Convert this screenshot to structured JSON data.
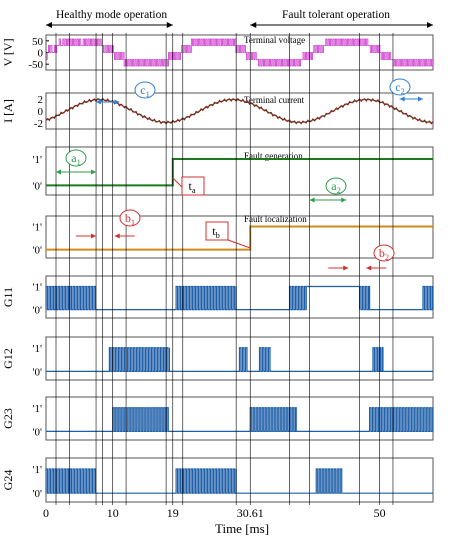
{
  "chart_data": {
    "type": "line",
    "mode_labels": {
      "healthy": "Healthy mode operation",
      "fault_tolerant": "Fault tolerant operation"
    },
    "xlabel": "Time [ms]",
    "x_ticks": [
      "0",
      "10",
      "19",
      "30.61",
      "50"
    ],
    "x_tick_values": [
      0,
      10,
      19,
      30.61,
      50
    ],
    "xlim": [
      0,
      58
    ],
    "event_times": {
      "t_a": 19,
      "t_b": 30.61
    },
    "logic_ticks": [
      "'1'",
      "'0'"
    ],
    "panels": [
      {
        "id": "voltage",
        "ylabel": "V [V]",
        "title": "Terminal voltage",
        "yticks": [
          "50",
          "0",
          "-50"
        ],
        "ylim": [
          -75,
          75
        ],
        "color": "#cc33cc"
      },
      {
        "id": "current",
        "ylabel": "I [A]",
        "title": "Terminal current",
        "yticks": [
          "2",
          "0",
          "-2"
        ],
        "ylim": [
          -3,
          3
        ],
        "color": "#8b1a1a",
        "ref_color": "#2e7d32"
      },
      {
        "id": "fault-generation",
        "title": "Fault generation",
        "color": "#1e7a1e",
        "switch_at": 19
      },
      {
        "id": "fault-localization",
        "title": "Fault localization",
        "color": "#d28a1a",
        "switch_at": 30.61
      },
      {
        "id": "g11",
        "ylabel": "G11",
        "color": "#1f5fa8"
      },
      {
        "id": "g12",
        "ylabel": "G12",
        "color": "#1f5fa8"
      },
      {
        "id": "g23",
        "ylabel": "G23",
        "color": "#1f5fa8"
      },
      {
        "id": "g24",
        "ylabel": "G24",
        "color": "#1f5fa8"
      }
    ],
    "annotations": {
      "a1": {
        "main": "a",
        "sub": "1"
      },
      "a2": {
        "main": "a",
        "sub": "2"
      },
      "b1": {
        "main": "b",
        "sub": "1"
      },
      "b2": {
        "main": "b",
        "sub": "2"
      },
      "c1": {
        "main": "c",
        "sub": "1"
      },
      "c2": {
        "main": "c",
        "sub": "2"
      },
      "ta": {
        "main": "t",
        "sub": "a"
      },
      "tb": {
        "main": "t",
        "sub": "b"
      }
    },
    "colors": {
      "annot_a": "#2e9d4a",
      "annot_b": "#d32f2f",
      "annot_c": "#2f7fd3",
      "grid": "#000000",
      "frame": "#555555"
    }
  }
}
